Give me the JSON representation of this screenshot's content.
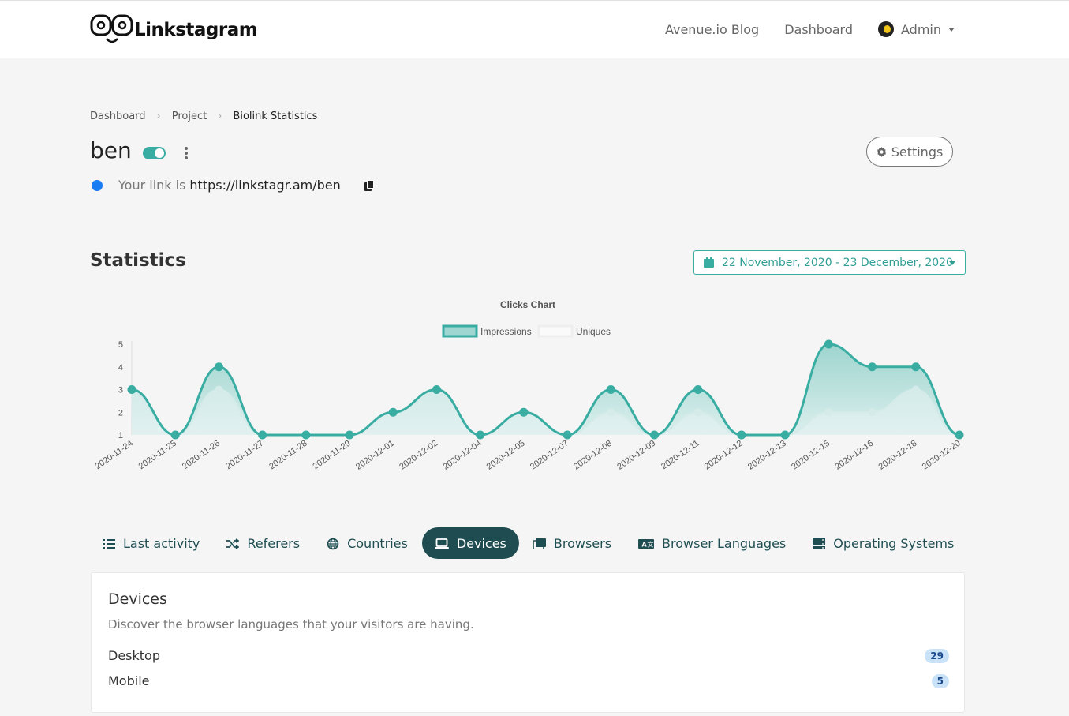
{
  "app": {
    "logo_text": "Linkstagram"
  },
  "nav": {
    "links": [
      "Avenue.io Blog",
      "Dashboard"
    ],
    "admin_label": "Admin"
  },
  "breadcrumb": [
    "Dashboard",
    "Project",
    "Biolink Statistics"
  ],
  "page": {
    "title": "ben",
    "enabled": true,
    "link_prefix": "Your link is",
    "link_url": "https://linkstagr.am/ben",
    "settings_label": "Settings"
  },
  "statistics": {
    "title": "Statistics",
    "date_range": "22 November, 2020 - 23 December, 2020"
  },
  "chart_data": {
    "type": "area",
    "title": "Clicks Chart",
    "legend_position": "top",
    "x": [
      "2020-11-24",
      "2020-11-25",
      "2020-11-26",
      "2020-11-27",
      "2020-11-28",
      "2020-11-29",
      "2020-12-01",
      "2020-12-02",
      "2020-12-04",
      "2020-12-05",
      "2020-12-07",
      "2020-12-08",
      "2020-12-09",
      "2020-12-11",
      "2020-12-12",
      "2020-12-13",
      "2020-12-15",
      "2020-12-16",
      "2020-12-18",
      "2020-12-20"
    ],
    "series": [
      {
        "name": "Impressions",
        "values": [
          3,
          1,
          4,
          1,
          1,
          1,
          2,
          3,
          1,
          2,
          1,
          3,
          1,
          3,
          1,
          1,
          5,
          4,
          4,
          1
        ],
        "color": "#3aada3"
      },
      {
        "name": "Uniques",
        "values": [
          3,
          1,
          3,
          1,
          1,
          1,
          2,
          3,
          1,
          2,
          1,
          2,
          1,
          2,
          1,
          1,
          2,
          2,
          3,
          1
        ],
        "color": "#e6f3f2"
      }
    ],
    "y_ticks": [
      1,
      2,
      3,
      4,
      5
    ],
    "ylim": [
      1,
      5
    ],
    "grid": false
  },
  "tabs": [
    {
      "label": "Last activity",
      "icon": "list-icon",
      "active": false
    },
    {
      "label": "Referers",
      "icon": "random-icon",
      "active": false
    },
    {
      "label": "Countries",
      "icon": "globe-icon",
      "active": false
    },
    {
      "label": "Devices",
      "icon": "laptop-icon",
      "active": true
    },
    {
      "label": "Browsers",
      "icon": "window-icon",
      "active": false
    },
    {
      "label": "Browser Languages",
      "icon": "language-icon",
      "active": false
    },
    {
      "label": "Operating Systems",
      "icon": "server-icon",
      "active": false
    }
  ],
  "devices": {
    "title": "Devices",
    "description": "Discover the browser languages that your visitors are having.",
    "rows": [
      {
        "label": "Desktop",
        "count": "29"
      },
      {
        "label": "Mobile",
        "count": "5"
      }
    ]
  },
  "colors": {
    "accent": "#3aada3",
    "active_tab": "#1e4c51",
    "link_dot": "#1a7cf2",
    "badge_bg": "#c9e2f8"
  }
}
